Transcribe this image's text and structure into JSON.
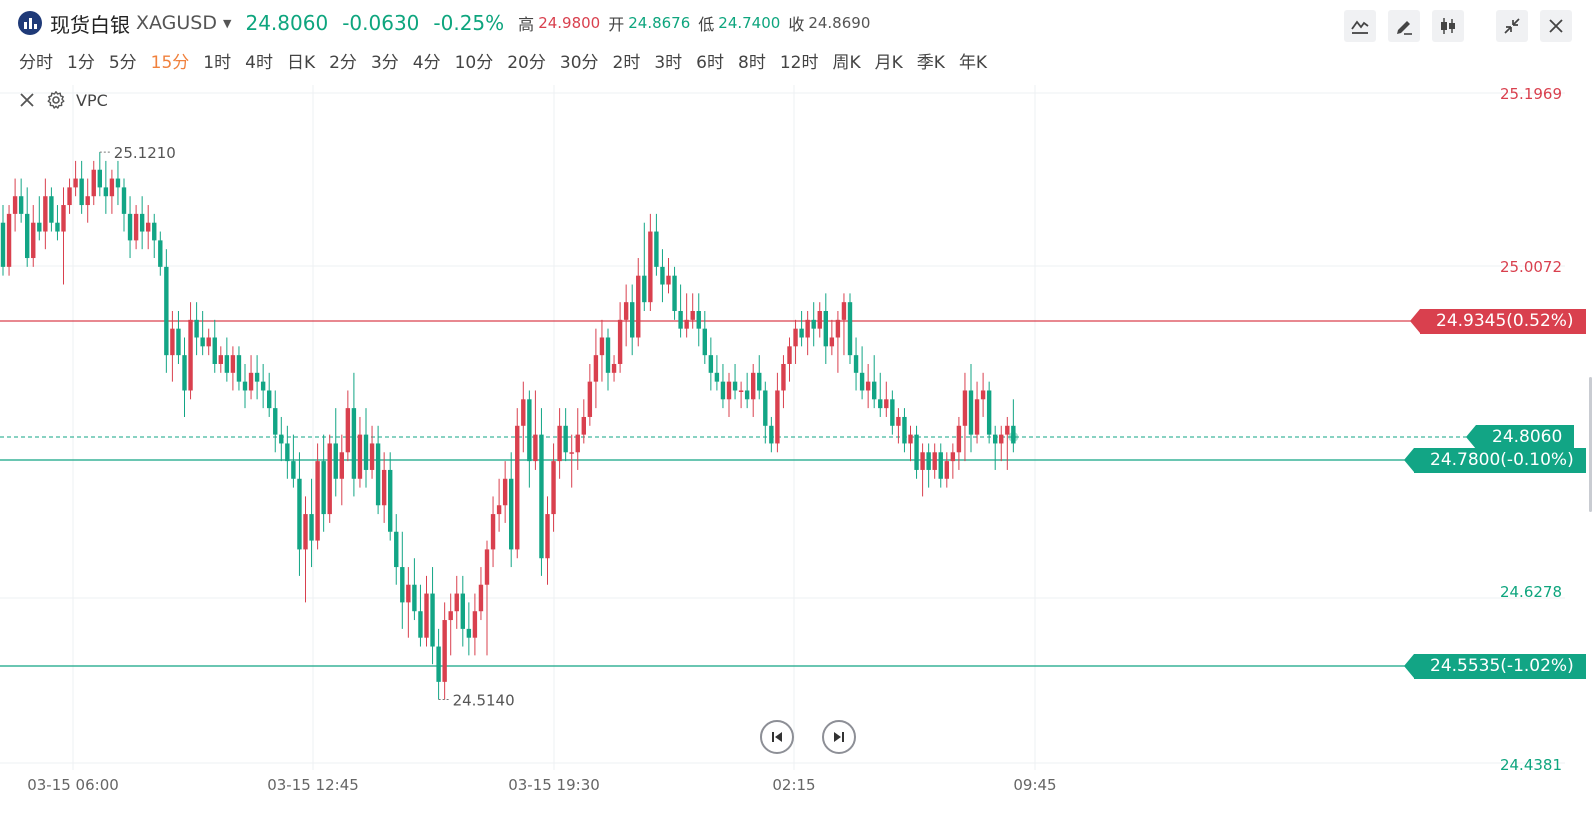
{
  "header": {
    "name": "现货白银",
    "symbol": "XAGUSD",
    "last": "24.8060",
    "change": "-0.0630",
    "change_pct": "-0.25%",
    "high_label": "高",
    "high": "24.9800",
    "open_label": "开",
    "open": "24.8676",
    "low_label": "低",
    "low": "24.7400",
    "close_label": "收",
    "close": "24.8690"
  },
  "toolbar_icons": [
    "line-style-icon",
    "draw-pencil-icon",
    "candle-type-icon",
    "collapse-icon",
    "close-icon"
  ],
  "timeframes": [
    "分时",
    "1分",
    "5分",
    "15分",
    "1时",
    "4时",
    "日K",
    "2分",
    "3分",
    "4分",
    "10分",
    "20分",
    "30分",
    "2时",
    "3时",
    "6时",
    "8时",
    "12时",
    "周K",
    "月K",
    "季K",
    "年K"
  ],
  "active_timeframe": "15分",
  "indicator": {
    "name": "VPC"
  },
  "colors": {
    "up": "#d9404e",
    "down": "#12a585",
    "text_up": "#d9404e",
    "text_down": "#0ea57e"
  },
  "chart_data": {
    "type": "candlestick",
    "y_ticks": [
      "25.1969",
      "25.0072",
      "24.6278",
      "24.4381"
    ],
    "x_ticks": [
      "03-15 06:00",
      "03-15 12:45",
      "03-15 19:30",
      "02:15",
      "09:45"
    ],
    "high_marker": "25.1210",
    "low_marker": "24.5140",
    "lines": [
      {
        "value": "24.9345(0.52%)",
        "color": "red"
      },
      {
        "value": "24.8060",
        "color": "green",
        "style": "dashed"
      },
      {
        "value": "24.7800(-0.10%)",
        "color": "green"
      },
      {
        "value": "24.5535(-1.02%)",
        "color": "green"
      }
    ],
    "ohlc": [
      [
        25.05,
        25.07,
        24.99,
        25.0
      ],
      [
        25.0,
        25.07,
        24.99,
        25.06
      ],
      [
        25.06,
        25.1,
        25.04,
        25.08
      ],
      [
        25.08,
        25.1,
        25.05,
        25.06
      ],
      [
        25.06,
        25.09,
        25.0,
        25.01
      ],
      [
        25.01,
        25.07,
        25.0,
        25.05
      ],
      [
        25.05,
        25.08,
        25.03,
        25.04
      ],
      [
        25.04,
        25.1,
        25.02,
        25.08
      ],
      [
        25.08,
        25.09,
        25.04,
        25.05
      ],
      [
        25.05,
        25.07,
        25.03,
        25.04
      ],
      [
        25.04,
        25.09,
        24.98,
        25.07
      ],
      [
        25.07,
        25.1,
        25.06,
        25.09
      ],
      [
        25.09,
        25.12,
        25.08,
        25.1
      ],
      [
        25.1,
        25.12,
        25.06,
        25.07
      ],
      [
        25.07,
        25.1,
        25.05,
        25.08
      ],
      [
        25.08,
        25.12,
        25.07,
        25.11
      ],
      [
        25.11,
        25.13,
        25.08,
        25.09
      ],
      [
        25.09,
        25.12,
        25.06,
        25.08
      ],
      [
        25.08,
        25.11,
        25.06,
        25.1
      ],
      [
        25.1,
        25.12,
        25.07,
        25.09
      ],
      [
        25.09,
        25.1,
        25.04,
        25.06
      ],
      [
        25.06,
        25.08,
        25.01,
        25.03
      ],
      [
        25.03,
        25.07,
        25.02,
        25.06
      ],
      [
        25.06,
        25.08,
        25.02,
        25.04
      ],
      [
        25.04,
        25.07,
        25.02,
        25.05
      ],
      [
        25.05,
        25.06,
        25.01,
        25.03
      ],
      [
        25.03,
        25.04,
        24.99,
        25.0
      ],
      [
        25.0,
        25.02,
        24.88,
        24.9
      ],
      [
        24.9,
        24.95,
        24.87,
        24.93
      ],
      [
        24.93,
        24.95,
        24.89,
        24.9
      ],
      [
        24.9,
        24.92,
        24.83,
        24.86
      ],
      [
        24.86,
        24.96,
        24.85,
        24.94
      ],
      [
        24.94,
        24.96,
        24.9,
        24.92
      ],
      [
        24.92,
        24.95,
        24.9,
        24.91
      ],
      [
        24.91,
        24.93,
        24.9,
        24.92
      ],
      [
        24.92,
        24.94,
        24.88,
        24.89
      ],
      [
        24.89,
        24.91,
        24.88,
        24.9
      ],
      [
        24.9,
        24.92,
        24.87,
        24.88
      ],
      [
        24.88,
        24.91,
        24.86,
        24.9
      ],
      [
        24.9,
        24.91,
        24.86,
        24.87
      ],
      [
        24.87,
        24.89,
        24.84,
        24.86
      ],
      [
        24.86,
        24.9,
        24.85,
        24.88
      ],
      [
        24.88,
        24.9,
        24.85,
        24.87
      ],
      [
        24.87,
        24.89,
        24.84,
        24.86
      ],
      [
        24.86,
        24.88,
        24.83,
        24.84
      ],
      [
        24.84,
        24.86,
        24.79,
        24.81
      ],
      [
        24.81,
        24.83,
        24.78,
        24.8
      ],
      [
        24.8,
        24.82,
        24.76,
        24.78
      ],
      [
        24.78,
        24.81,
        24.75,
        24.76
      ],
      [
        24.76,
        24.79,
        24.65,
        24.68
      ],
      [
        24.68,
        24.74,
        24.62,
        24.72
      ],
      [
        24.72,
        24.76,
        24.66,
        24.69
      ],
      [
        24.69,
        24.8,
        24.68,
        24.78
      ],
      [
        24.78,
        24.81,
        24.7,
        24.72
      ],
      [
        24.72,
        24.81,
        24.71,
        24.8
      ],
      [
        24.8,
        24.84,
        24.74,
        24.76
      ],
      [
        24.76,
        24.81,
        24.73,
        24.79
      ],
      [
        24.79,
        24.86,
        24.78,
        24.84
      ],
      [
        24.84,
        24.88,
        24.74,
        24.76
      ],
      [
        24.76,
        24.83,
        24.75,
        24.81
      ],
      [
        24.81,
        24.84,
        24.75,
        24.77
      ],
      [
        24.77,
        24.82,
        24.76,
        24.8
      ],
      [
        24.8,
        24.82,
        24.72,
        24.73
      ],
      [
        24.73,
        24.79,
        24.71,
        24.77
      ],
      [
        24.77,
        24.79,
        24.69,
        24.7
      ],
      [
        24.7,
        24.72,
        24.64,
        24.66
      ],
      [
        24.66,
        24.7,
        24.59,
        24.62
      ],
      [
        24.62,
        24.66,
        24.58,
        24.64
      ],
      [
        24.64,
        24.67,
        24.6,
        24.61
      ],
      [
        24.61,
        24.64,
        24.57,
        24.58
      ],
      [
        24.58,
        24.65,
        24.57,
        24.63
      ],
      [
        24.63,
        24.66,
        24.55,
        24.57
      ],
      [
        24.57,
        24.59,
        24.51,
        24.53
      ],
      [
        24.53,
        24.62,
        24.51,
        24.6
      ],
      [
        24.6,
        24.63,
        24.56,
        24.61
      ],
      [
        24.61,
        24.65,
        24.59,
        24.63
      ],
      [
        24.63,
        24.65,
        24.57,
        24.59
      ],
      [
        24.59,
        24.62,
        24.56,
        24.58
      ],
      [
        24.58,
        24.63,
        24.56,
        24.61
      ],
      [
        24.61,
        24.66,
        24.6,
        24.64
      ],
      [
        24.64,
        24.69,
        24.56,
        24.68
      ],
      [
        24.68,
        24.74,
        24.66,
        24.72
      ],
      [
        24.72,
        24.76,
        24.7,
        24.73
      ],
      [
        24.73,
        24.78,
        24.71,
        24.76
      ],
      [
        24.76,
        24.79,
        24.66,
        24.68
      ],
      [
        24.68,
        24.84,
        24.67,
        24.82
      ],
      [
        24.82,
        24.87,
        24.79,
        24.85
      ],
      [
        24.85,
        24.86,
        24.75,
        24.78
      ],
      [
        24.78,
        24.86,
        24.77,
        24.81
      ],
      [
        24.81,
        24.84,
        24.65,
        24.67
      ],
      [
        24.67,
        24.74,
        24.64,
        24.72
      ],
      [
        24.72,
        24.8,
        24.7,
        24.78
      ],
      [
        24.78,
        24.84,
        24.76,
        24.82
      ],
      [
        24.82,
        24.84,
        24.78,
        24.79
      ],
      [
        24.79,
        24.81,
        24.75,
        24.79
      ],
      [
        24.79,
        24.84,
        24.77,
        24.81
      ],
      [
        24.81,
        24.85,
        24.8,
        24.83
      ],
      [
        24.83,
        24.89,
        24.82,
        24.87
      ],
      [
        24.87,
        24.93,
        24.84,
        24.9
      ],
      [
        24.9,
        24.94,
        24.87,
        24.92
      ],
      [
        24.92,
        24.93,
        24.86,
        24.88
      ],
      [
        24.88,
        24.9,
        24.87,
        24.89
      ],
      [
        24.89,
        24.96,
        24.88,
        24.94
      ],
      [
        24.94,
        24.98,
        24.91,
        24.96
      ],
      [
        24.96,
        24.98,
        24.9,
        24.92
      ],
      [
        24.92,
        25.01,
        24.91,
        24.99
      ],
      [
        24.99,
        25.05,
        24.95,
        24.96
      ],
      [
        24.96,
        25.06,
        24.95,
        25.04
      ],
      [
        25.04,
        25.06,
        24.99,
        25.0
      ],
      [
        25.0,
        25.02,
        24.96,
        24.98
      ],
      [
        24.98,
        25.01,
        24.97,
        24.99
      ],
      [
        24.99,
        25.0,
        24.94,
        24.95
      ],
      [
        24.95,
        24.98,
        24.92,
        24.93
      ],
      [
        24.93,
        24.97,
        24.92,
        24.94
      ],
      [
        24.94,
        24.97,
        24.93,
        24.95
      ],
      [
        24.95,
        24.97,
        24.91,
        24.93
      ],
      [
        24.93,
        24.95,
        24.89,
        24.9
      ],
      [
        24.9,
        24.92,
        24.86,
        24.88
      ],
      [
        24.88,
        24.9,
        24.86,
        24.87
      ],
      [
        24.87,
        24.89,
        24.84,
        24.85
      ],
      [
        24.85,
        24.88,
        24.83,
        24.87
      ],
      [
        24.87,
        24.89,
        24.85,
        24.86
      ],
      [
        24.86,
        24.87,
        24.84,
        24.86
      ],
      [
        24.86,
        24.88,
        24.84,
        24.85
      ],
      [
        24.85,
        24.89,
        24.83,
        24.88
      ],
      [
        24.88,
        24.9,
        24.85,
        24.86
      ],
      [
        24.86,
        24.87,
        24.8,
        24.82
      ],
      [
        24.82,
        24.83,
        24.79,
        24.8
      ],
      [
        24.8,
        24.88,
        24.79,
        24.86
      ],
      [
        24.86,
        24.9,
        24.84,
        24.89
      ],
      [
        24.89,
        24.92,
        24.87,
        24.91
      ],
      [
        24.91,
        24.94,
        24.89,
        24.93
      ],
      [
        24.93,
        24.95,
        24.91,
        24.92
      ],
      [
        24.92,
        24.95,
        24.9,
        24.94
      ],
      [
        24.94,
        24.96,
        24.91,
        24.93
      ],
      [
        24.93,
        24.96,
        24.92,
        24.95
      ],
      [
        24.95,
        24.97,
        24.89,
        24.91
      ],
      [
        24.91,
        24.94,
        24.9,
        24.92
      ],
      [
        24.92,
        24.95,
        24.88,
        24.94
      ],
      [
        24.94,
        24.97,
        24.9,
        24.96
      ],
      [
        24.96,
        24.97,
        24.89,
        24.9
      ],
      [
        24.9,
        24.92,
        24.86,
        24.88
      ],
      [
        24.88,
        24.91,
        24.85,
        24.86
      ],
      [
        24.86,
        24.89,
        24.84,
        24.87
      ],
      [
        24.87,
        24.9,
        24.84,
        24.85
      ],
      [
        24.85,
        24.88,
        24.83,
        24.84
      ],
      [
        24.84,
        24.87,
        24.83,
        24.85
      ],
      [
        24.85,
        24.86,
        24.81,
        24.82
      ],
      [
        24.82,
        24.84,
        24.8,
        24.83
      ],
      [
        24.83,
        24.84,
        24.79,
        24.8
      ],
      [
        24.8,
        24.82,
        24.78,
        24.81
      ],
      [
        24.81,
        24.82,
        24.76,
        24.77
      ],
      [
        24.77,
        24.8,
        24.74,
        24.79
      ],
      [
        24.79,
        24.8,
        24.75,
        24.77
      ],
      [
        24.77,
        24.8,
        24.76,
        24.79
      ],
      [
        24.79,
        24.8,
        24.75,
        24.76
      ],
      [
        24.76,
        24.79,
        24.75,
        24.78
      ],
      [
        24.78,
        24.8,
        24.76,
        24.79
      ],
      [
        24.79,
        24.83,
        24.77,
        24.82
      ],
      [
        24.82,
        24.88,
        24.78,
        24.86
      ],
      [
        24.86,
        24.89,
        24.79,
        24.81
      ],
      [
        24.81,
        24.87,
        24.8,
        24.85
      ],
      [
        24.85,
        24.88,
        24.83,
        24.86
      ],
      [
        24.86,
        24.87,
        24.8,
        24.81
      ],
      [
        24.81,
        24.82,
        24.77,
        24.8
      ],
      [
        24.8,
        24.82,
        24.78,
        24.81
      ],
      [
        24.81,
        24.83,
        24.77,
        24.82
      ],
      [
        24.82,
        24.85,
        24.79,
        24.8
      ]
    ]
  }
}
